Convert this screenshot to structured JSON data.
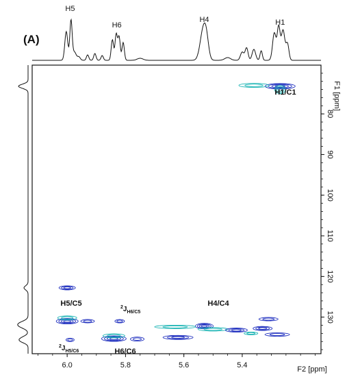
{
  "panel_label": "(A)",
  "colors": {
    "positive": "#1f2fbf",
    "negative": "#17b3b3",
    "axis": "#111111",
    "trace": "#111111"
  },
  "chart_data": {
    "type": "scatter",
    "title": "",
    "xlabel": "F2 [ppm]",
    "ylabel": "F1 [ppm]",
    "x_reversed": true,
    "y_reversed": true,
    "xlim": [
      6.12,
      5.13
    ],
    "ylim": [
      68,
      139
    ],
    "x_ticks": [
      "6.0",
      "5.8",
      "5.6",
      "5.4"
    ],
    "y_ticks": [
      "80",
      "90",
      "100",
      "110",
      "120",
      "130"
    ],
    "x_tick_values": [
      6.0,
      5.8,
      5.6,
      5.4
    ],
    "y_tick_values": [
      80,
      90,
      100,
      110,
      120,
      130
    ],
    "grid": false,
    "proton_labels": [
      {
        "label": "H5",
        "x": 5.99
      },
      {
        "label": "H6",
        "x": 5.83
      },
      {
        "label": "H4",
        "x": 5.53
      },
      {
        "label": "H1",
        "x": 5.27
      }
    ],
    "cross_peaks": [
      {
        "label": "H1/C1",
        "x": 5.27,
        "y": 73.2
      },
      {
        "label": "H5/C5",
        "x": 5.99,
        "y": 131.0
      },
      {
        "label": "H6/C6",
        "x": 5.83,
        "y": 135.3
      },
      {
        "label": "H4/C4",
        "x": 5.53,
        "y": 132.2
      },
      {
        "label": "2J H6/C5",
        "x": 5.82,
        "y": 131.0
      },
      {
        "label": "2J H5/C6",
        "x": 5.99,
        "y": 135.6
      }
    ],
    "annotation_labels": {
      "h1c1": "H1/C1",
      "h5c5": "H5/C5",
      "h6c6": "H6/C6",
      "h4c4": "H4/C4",
      "j_h6c5_super": "2",
      "j_h6c5_main": "J",
      "j_h6c5_sub": "H6/C5",
      "j_h5c6_super": "2",
      "j_h5c6_main": "J",
      "j_h5c6_sub": "H5/C6"
    }
  }
}
